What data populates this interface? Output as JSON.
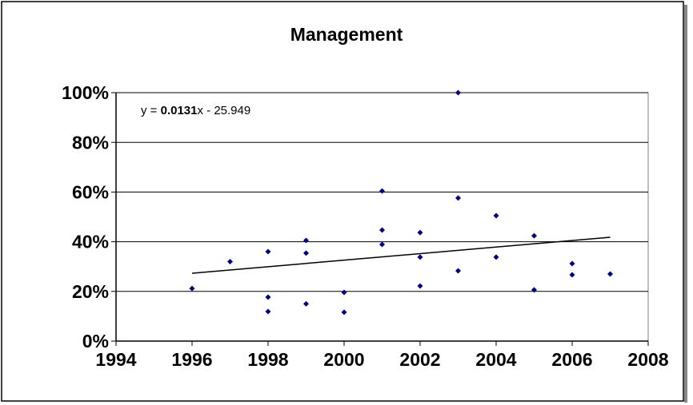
{
  "chart_data": {
    "type": "scatter",
    "title": "Management",
    "equation": {
      "prefix": "y = ",
      "coef": "0.0131",
      "suffix": "x - 25.949"
    },
    "x": [
      1996,
      1997,
      1998,
      1998,
      1998,
      1999,
      1999,
      1999,
      2000,
      2000,
      2001,
      2001,
      2001,
      2002,
      2002,
      2002,
      2003,
      2003,
      2003,
      2004,
      2004,
      2005,
      2005,
      2006,
      2006,
      2007
    ],
    "values": [
      21.2,
      32,
      36,
      17.7,
      11.9,
      40.5,
      35.4,
      15,
      19.6,
      11.6,
      60.4,
      44.7,
      38.9,
      43.7,
      33.8,
      22.2,
      100,
      57.6,
      28.3,
      50.5,
      33.8,
      42.4,
      20.6,
      31.2,
      26.7,
      27
    ],
    "color": "#000080",
    "trendline": {
      "x": [
        1996,
        2007
      ],
      "values": [
        27.3,
        41.8
      ],
      "color": "#000000"
    },
    "xlim": [
      1994,
      2008
    ],
    "xticks": [
      1994,
      1996,
      1998,
      2000,
      2002,
      2004,
      2006,
      2008
    ],
    "ylim": [
      0,
      100
    ],
    "yticks": [
      {
        "value": 0,
        "label": "0%"
      },
      {
        "value": 20,
        "label": "20%"
      },
      {
        "value": 40,
        "label": "40%"
      },
      {
        "value": 60,
        "label": "60%"
      },
      {
        "value": 80,
        "label": "80%"
      },
      {
        "value": 100,
        "label": "100%"
      }
    ],
    "grid": true
  }
}
